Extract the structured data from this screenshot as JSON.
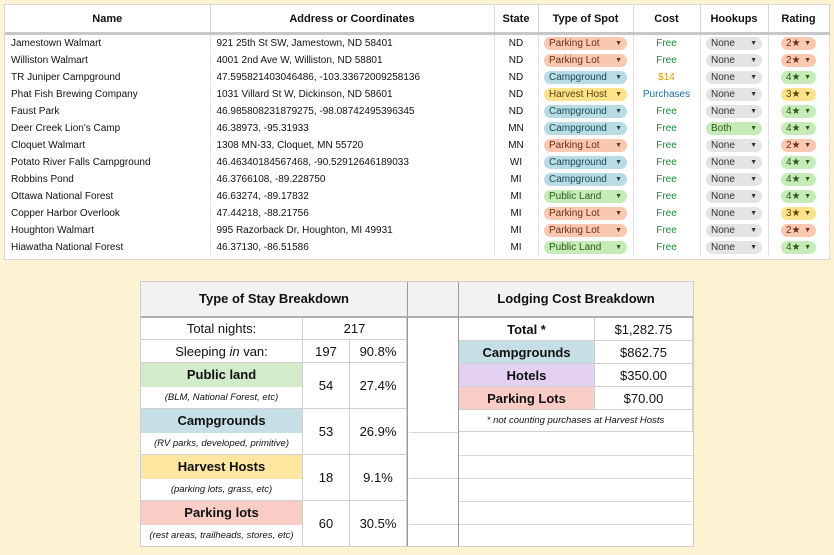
{
  "table": {
    "headers": [
      "Name",
      "Address or Coordinates",
      "State",
      "Type of Spot",
      "Cost",
      "Hookups",
      "Rating"
    ],
    "rows": [
      {
        "name": "Jamestown Walmart",
        "address": "921 25th St SW, Jamestown, ND  58401",
        "state": "ND",
        "type": "Parking Lot",
        "cost": "Free",
        "hookups": "None",
        "rating": "2★"
      },
      {
        "name": "Williston Walmart",
        "address": "4001 2nd Ave W, Williston, ND 58801",
        "state": "ND",
        "type": "Parking Lot",
        "cost": "Free",
        "hookups": "None",
        "rating": "2★"
      },
      {
        "name": "TR Juniper Campground",
        "address": "47.595821403046486, -103.33672009258136",
        "state": "ND",
        "type": "Campground",
        "cost": "$14",
        "hookups": "None",
        "rating": "4★"
      },
      {
        "name": "Phat Fish Brewing Company",
        "address": "1031 Villard St W, Dickinson, ND 58601",
        "state": "ND",
        "type": "Harvest Host",
        "cost": "Purchases",
        "hookups": "None",
        "rating": "3★"
      },
      {
        "name": "Faust Park",
        "address": "46.985808231879275, -98.08742495396345",
        "state": "ND",
        "type": "Campground",
        "cost": "Free",
        "hookups": "None",
        "rating": "4★"
      },
      {
        "name": "Deer Creek Lion's Camp",
        "address": "46.38973, -95.31933",
        "state": "MN",
        "type": "Campground",
        "cost": "Free",
        "hookups": "Both",
        "rating": "4★"
      },
      {
        "name": "Cloquet Walmart",
        "address": "1308 MN-33, Cloquet, MN 55720",
        "state": "MN",
        "type": "Parking Lot",
        "cost": "Free",
        "hookups": "None",
        "rating": "2★"
      },
      {
        "name": "Potato River Falls Campground",
        "address": "46.46340184567468, -90.52912646189033",
        "state": "WI",
        "type": "Campground",
        "cost": "Free",
        "hookups": "None",
        "rating": "4★"
      },
      {
        "name": "Robbins Pond",
        "address": "46.3766108, -89.228750",
        "state": "MI",
        "type": "Campground",
        "cost": "Free",
        "hookups": "None",
        "rating": "4★"
      },
      {
        "name": "Ottawa National Forest",
        "address": "46.63274, -89.17832",
        "state": "MI",
        "type": "Public Land",
        "cost": "Free",
        "hookups": "None",
        "rating": "4★"
      },
      {
        "name": "Copper Harbor Overlook",
        "address": "47.44218, -88.21756",
        "state": "MI",
        "type": "Parking Lot",
        "cost": "Free",
        "hookups": "None",
        "rating": "3★"
      },
      {
        "name": "Houghton Walmart",
        "address": "995 Razorback Dr, Houghton, MI 49931",
        "state": "MI",
        "type": "Parking Lot",
        "cost": "Free",
        "hookups": "None",
        "rating": "2★"
      },
      {
        "name": "Hiawatha National Forest",
        "address": "46.37130, -86.51586",
        "state": "MI",
        "type": "Public Land",
        "cost": "Free",
        "hookups": "None",
        "rating": "4★"
      }
    ]
  },
  "stay": {
    "title": "Type of Stay Breakdown",
    "total_label": "Total nights:",
    "total_value": "217",
    "sleeping_pre": "Sleeping ",
    "sleeping_em": "in",
    "sleeping_post": " van:",
    "sleeping_count": "197",
    "sleeping_pct": "90.8%",
    "categories": [
      {
        "title": "Public land",
        "sub": "(BLM, National Forest, etc)",
        "count": "54",
        "pct": "27.4%"
      },
      {
        "title": "Campgrounds",
        "sub": "(RV parks, developed, primitive)",
        "count": "53",
        "pct": "26.9%"
      },
      {
        "title": "Harvest Hosts",
        "sub": "(parking lots, grass, etc)",
        "count": "18",
        "pct": "9.1%"
      },
      {
        "title": "Parking lots",
        "sub": "(rest areas, trailheads, stores, etc)",
        "count": "60",
        "pct": "30.5%"
      }
    ]
  },
  "cost": {
    "title": "Lodging Cost Breakdown",
    "total_label": "Total *",
    "total_value": "$1,282.75",
    "rows": [
      {
        "label": "Campgrounds",
        "value": "$862.75"
      },
      {
        "label": "Hotels",
        "value": "$350.00"
      },
      {
        "label": "Parking Lots",
        "value": "$70.00"
      }
    ],
    "note": "* not counting purchases at Harvest Hosts"
  },
  "colors": {
    "page_bg": "#fdf3d2",
    "public_land": "#d2eccb",
    "campgrounds": "#c6dfe6",
    "harvest_hosts": "#fde7a0",
    "parking_lots": "#f9cdc6",
    "hotels": "#e4d0f0"
  },
  "icons": {
    "dropdown": "dropdown-arrow-icon"
  }
}
